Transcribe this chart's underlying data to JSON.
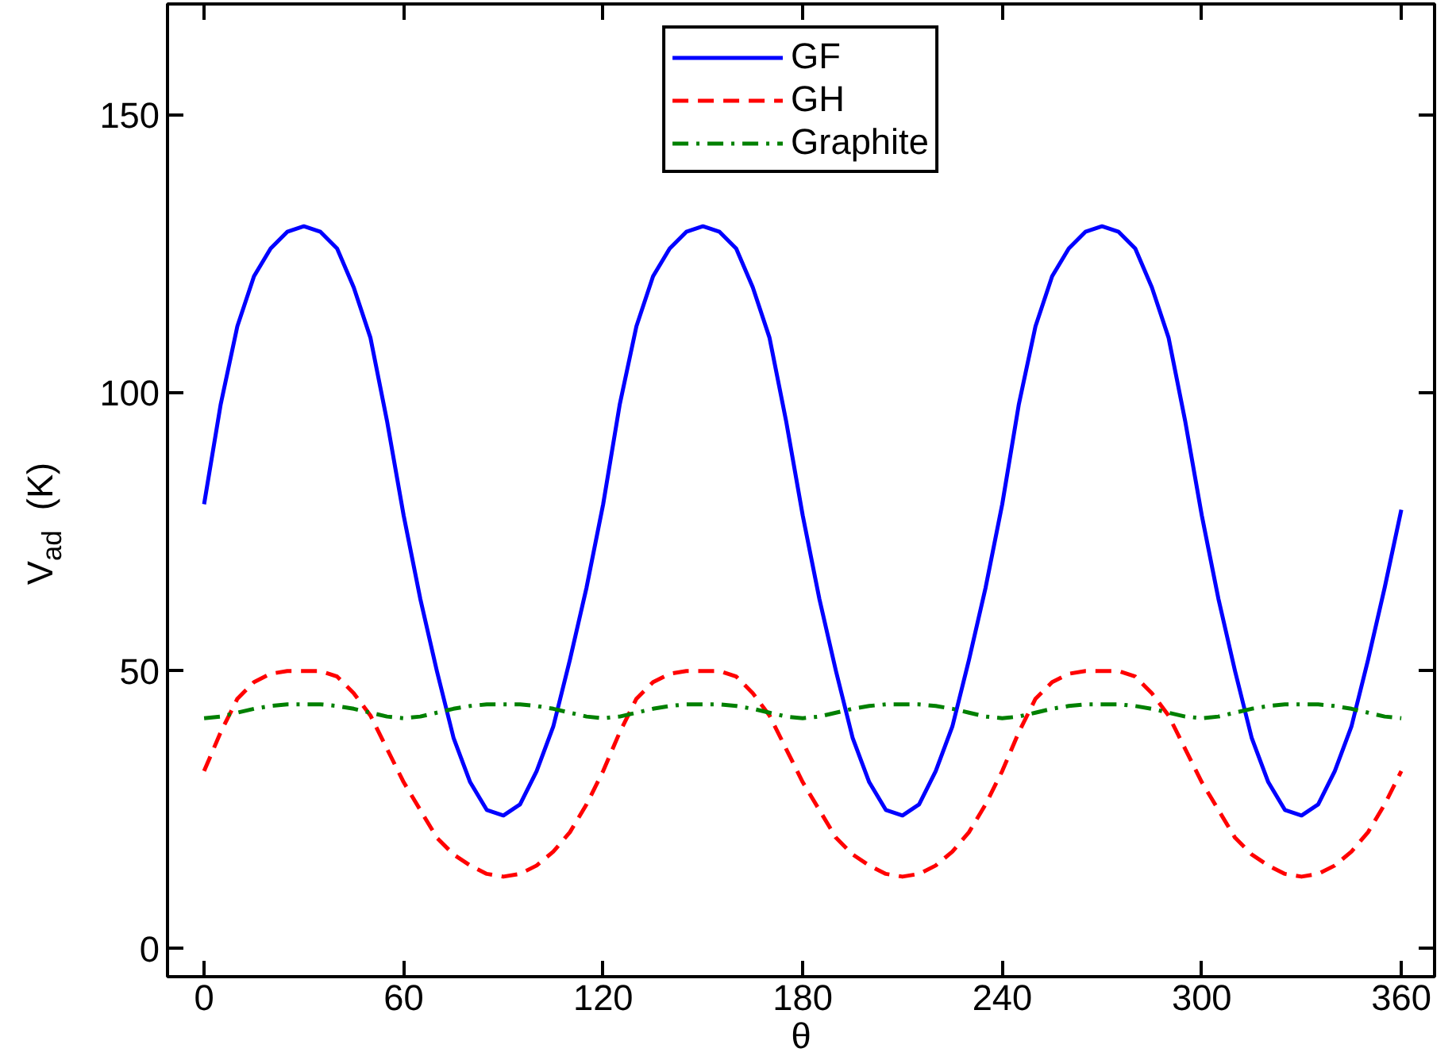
{
  "chart_data": {
    "type": "line",
    "xlabel": "θ",
    "ylabel": "V$_{ad}$  (K)",
    "x": [
      0,
      5,
      10,
      15,
      20,
      25,
      30,
      35,
      40,
      45,
      50,
      55,
      60,
      65,
      70,
      75,
      80,
      85,
      90,
      95,
      100,
      105,
      110,
      115,
      120,
      125,
      130,
      135,
      140,
      145,
      150,
      155,
      160,
      165,
      170,
      175,
      180,
      185,
      190,
      195,
      200,
      205,
      210,
      215,
      220,
      225,
      230,
      235,
      240,
      245,
      250,
      255,
      260,
      265,
      270,
      275,
      280,
      285,
      290,
      295,
      300,
      305,
      310,
      315,
      320,
      325,
      330,
      335,
      340,
      345,
      350,
      355,
      360
    ],
    "series": [
      {
        "name": "GF",
        "color": "#0000ff",
        "line_style": "solid",
        "values": [
          80,
          98,
          112,
          121,
          126,
          129,
          130,
          129,
          126,
          119,
          110,
          95,
          78,
          63,
          50,
          38,
          30,
          25,
          24,
          26,
          32,
          40,
          52,
          65,
          80,
          98,
          112,
          121,
          126,
          129,
          130,
          129,
          126,
          119,
          110,
          95,
          78,
          63,
          50,
          38,
          30,
          25,
          24,
          26,
          32,
          40,
          52,
          65,
          80,
          98,
          112,
          121,
          126,
          129,
          130,
          129,
          126,
          119,
          110,
          95,
          78,
          63,
          50,
          38,
          30,
          25,
          24,
          26,
          32,
          40,
          52,
          65,
          79
        ]
      },
      {
        "name": "GH",
        "color": "#ff0000",
        "line_style": "dashed",
        "values": [
          32,
          39,
          45,
          48,
          49.5,
          50,
          50,
          50,
          49,
          46,
          42,
          36,
          30,
          25,
          20,
          17,
          15,
          13.5,
          13,
          13.5,
          15,
          17.5,
          21,
          26,
          32,
          39,
          45,
          48,
          49.5,
          50,
          50,
          50,
          49,
          46,
          42,
          36,
          30,
          25,
          20,
          17,
          15,
          13.5,
          13,
          13.5,
          15,
          17.5,
          21,
          26,
          32,
          39,
          45,
          48,
          49.5,
          50,
          50,
          50,
          49,
          46,
          42,
          36,
          30,
          25,
          20,
          17,
          15,
          13.5,
          13,
          13.5,
          15,
          17.5,
          21,
          26,
          32
        ]
      },
      {
        "name": "Graphite",
        "color": "#008000",
        "line_style": "dashdot",
        "values": [
          41.5,
          41.8,
          42.5,
          43.2,
          43.7,
          44,
          44,
          44,
          43.7,
          43.2,
          42.5,
          41.8,
          41.5,
          41.8,
          42.5,
          43.2,
          43.7,
          44,
          44,
          44,
          43.7,
          43.2,
          42.5,
          41.8,
          41.5,
          41.8,
          42.5,
          43.2,
          43.7,
          44,
          44,
          44,
          43.7,
          43.2,
          42.5,
          41.8,
          41.5,
          41.8,
          42.5,
          43.2,
          43.7,
          44,
          44,
          44,
          43.7,
          43.2,
          42.5,
          41.8,
          41.5,
          41.8,
          42.5,
          43.2,
          43.7,
          44,
          44,
          44,
          43.7,
          43.2,
          42.5,
          41.8,
          41.5,
          41.8,
          42.5,
          43.2,
          43.7,
          44,
          44,
          44,
          43.7,
          43.2,
          42.5,
          41.8,
          41.5
        ]
      }
    ],
    "xlim": [
      -11,
      370
    ],
    "ylim": [
      -5,
      170
    ],
    "xticks": [
      0,
      60,
      120,
      180,
      240,
      300,
      360
    ],
    "yticks": [
      0,
      50,
      100,
      150
    ],
    "grid": false,
    "legend": "top",
    "marker": "none"
  }
}
